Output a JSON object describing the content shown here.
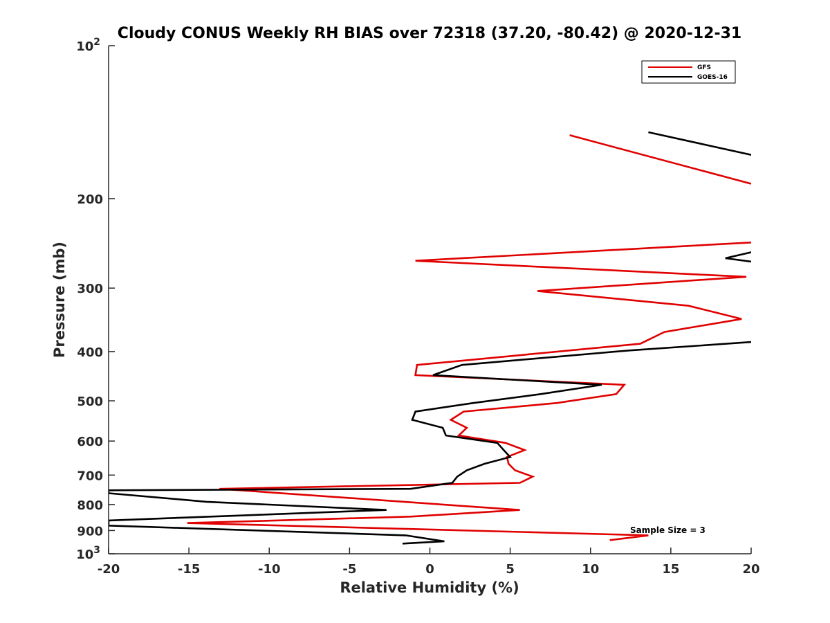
{
  "chart_data": {
    "type": "line",
    "title": "Cloudy CONUS Weekly RH BIAS over 72318 (37.20, -80.42) @ 2020-12-31",
    "xlabel": "Relative Humidity (%)",
    "ylabel": "Pressure (mb)",
    "xlim": [
      -20,
      20
    ],
    "ylim": [
      100,
      1000
    ],
    "yscale": "log",
    "y_reversed": true,
    "x_ticks": [
      -20,
      -15,
      -10,
      -5,
      0,
      5,
      10,
      15,
      20
    ],
    "x_tick_labels": [
      "-20",
      "-15",
      "-10",
      "-5",
      "0",
      "5",
      "10",
      "15",
      "20"
    ],
    "y_ticks": [
      200,
      300,
      400,
      500,
      600,
      700,
      800,
      900
    ],
    "y_tick_labels": [
      "200",
      "300",
      "400",
      "500",
      "600",
      "700",
      "800",
      "900"
    ],
    "y_major_labels": [
      {
        "value": 100,
        "base": "10",
        "exp": "2"
      },
      {
        "value": 1000,
        "base": "10",
        "exp": "3"
      }
    ],
    "legend": {
      "position": "top-right",
      "entries": [
        "GFS",
        "GOES-16"
      ]
    },
    "annotation": "Sample Size = 3",
    "series": [
      {
        "name": "GFS",
        "color": "#e00000",
        "segments": [
          [
            [
              8.7,
              150
            ],
            [
              20,
              187
            ]
          ],
          [
            [
              20,
              244
            ],
            [
              -0.9,
              265
            ],
            [
              19.7,
              285
            ],
            [
              6.7,
              304
            ],
            [
              16.1,
              325
            ],
            [
              19.4,
              345
            ],
            [
              14.6,
              366
            ],
            [
              13.1,
              386
            ],
            [
              -0.8,
              425
            ],
            [
              -0.9,
              445
            ],
            [
              12.1,
              465
            ],
            [
              11.6,
              485
            ],
            [
              7.9,
              505
            ],
            [
              2.1,
              525
            ],
            [
              1.3,
              545
            ],
            [
              2.3,
              565
            ],
            [
              1.8,
              585
            ],
            [
              4.7,
              605
            ],
            [
              5.9,
              625
            ],
            [
              4.8,
              645
            ],
            [
              4.9,
              665
            ],
            [
              5.3,
              685
            ],
            [
              6.4,
              705
            ],
            [
              5.6,
              725
            ],
            [
              -13.1,
              745
            ],
            [
              5.6,
              820
            ],
            [
              -1.2,
              845
            ],
            [
              -15.1,
              870
            ],
            [
              13.6,
              920
            ],
            [
              11.2,
              940
            ]
          ]
        ]
      },
      {
        "name": "GOES-16",
        "color": "#000000",
        "segments": [
          [
            [
              13.6,
              148
            ],
            [
              20,
              164
            ]
          ],
          [
            [
              20,
              255
            ],
            [
              18.4,
              262
            ],
            [
              20,
              266
            ]
          ],
          [
            [
              20,
              383
            ],
            [
              12.4,
              398
            ],
            [
              2.0,
              425
            ],
            [
              0.2,
              445
            ],
            [
              10.7,
              465
            ],
            [
              6.9,
              485
            ],
            [
              2.7,
              505
            ],
            [
              -0.9,
              525
            ],
            [
              -1.1,
              545
            ],
            [
              0.8,
              565
            ],
            [
              1.0,
              585
            ],
            [
              4.2,
              605
            ],
            [
              4.6,
              625
            ],
            [
              5.0,
              645
            ],
            [
              3.4,
              665
            ],
            [
              2.3,
              685
            ],
            [
              1.7,
              705
            ],
            [
              1.4,
              725
            ],
            [
              -1.2,
              745
            ],
            [
              -20,
              750
            ],
            [
              -20,
              760
            ],
            [
              -13.9,
              790
            ],
            [
              -2.7,
              820
            ],
            [
              -20,
              860
            ],
            [
              -20,
              880
            ],
            [
              -1.5,
              920
            ],
            [
              0.9,
              945
            ],
            [
              -1.7,
              955
            ]
          ]
        ]
      }
    ]
  }
}
